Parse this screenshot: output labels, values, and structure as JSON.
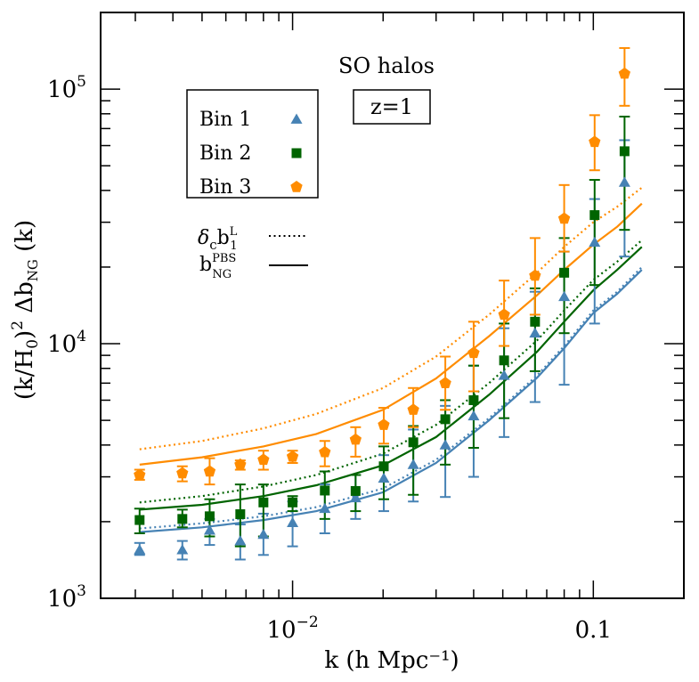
{
  "chart_data": {
    "type": "scatter",
    "xlabel": "k (h Mpc⁻¹)",
    "ylabel": "(k/H₀)² Δb_NG (k)",
    "xscale": "log",
    "yscale": "log",
    "xlim": [
      0.0023,
      0.2
    ],
    "ylim": [
      1000,
      200000
    ],
    "xticks": [
      {
        "value": 0.01,
        "label": "10",
        "exp": "−2"
      },
      {
        "value": 0.1,
        "label": "0.1",
        "exp": ""
      }
    ],
    "yticks": [
      {
        "value": 1000,
        "label": "10",
        "exp": "3"
      },
      {
        "value": 10000,
        "label": "10",
        "exp": "4"
      },
      {
        "value": 100000,
        "label": "10",
        "exp": "5"
      }
    ],
    "annotations": {
      "title": "SO halos",
      "redshift": "z=1"
    },
    "legend": {
      "placement": "top-left",
      "entries": [
        {
          "label": "Bin 1",
          "marker": "triangle",
          "color": "#4682b4"
        },
        {
          "label": "Bin 2",
          "marker": "square",
          "color": "#006400"
        },
        {
          "label": "Bin 3",
          "marker": "pentagon",
          "color": "#ff8c00"
        }
      ],
      "line_entries": [
        {
          "label": "δ",
          "sub": "c",
          "label2": "b",
          "sup2": "L",
          "sub2": "1",
          "style": "dotted"
        },
        {
          "label": "b",
          "sup": "PBS",
          "sub": "NG",
          "style": "solid"
        }
      ]
    },
    "x": [
      0.0031,
      0.0043,
      0.0053,
      0.0067,
      0.008,
      0.01,
      0.0128,
      0.0162,
      0.0201,
      0.0252,
      0.0322,
      0.04,
      0.0505,
      0.064,
      0.08,
      0.101,
      0.127
    ],
    "series": [
      {
        "name": "Bin 1",
        "marker": "triangle",
        "color": "#4682b4",
        "y": [
          1550,
          1550,
          1850,
          1680,
          1780,
          1980,
          2250,
          2480,
          2960,
          3350,
          4000,
          5200,
          7500,
          11000,
          15300,
          25000,
          43000
        ],
        "ylow": [
          1480,
          1420,
          1620,
          1420,
          1480,
          1600,
          1800,
          2050,
          2200,
          2400,
          2500,
          3000,
          4300,
          5900,
          6900,
          12000,
          22000
        ],
        "yhigh": [
          1650,
          1680,
          2050,
          1950,
          2150,
          2400,
          2800,
          3050,
          3650,
          4600,
          5700,
          8200,
          11500,
          16000,
          23000,
          37000,
          63000
        ]
      },
      {
        "name": "Bin 2",
        "marker": "square",
        "color": "#006400",
        "y": [
          2030,
          2050,
          2100,
          2140,
          2380,
          2380,
          2650,
          2640,
          3300,
          4100,
          5050,
          6000,
          8600,
          12200,
          19000,
          32000,
          57000
        ],
        "ylow": [
          1800,
          1900,
          1750,
          1600,
          1750,
          2200,
          2050,
          2200,
          2450,
          2550,
          3350,
          3900,
          5100,
          7800,
          11000,
          17000,
          28000
        ],
        "yhigh": [
          2250,
          2230,
          2450,
          2800,
          2800,
          2520,
          3150,
          3050,
          3950,
          4750,
          6000,
          8200,
          12000,
          16500,
          26000,
          44000,
          78000
        ]
      },
      {
        "name": "Bin 3",
        "marker": "pentagon",
        "color": "#ff8c00",
        "y": [
          3050,
          3100,
          3150,
          3350,
          3500,
          3600,
          3750,
          4200,
          4800,
          5500,
          7000,
          9200,
          13000,
          18500,
          31000,
          62000,
          115000
        ],
        "ylow": [
          2920,
          2880,
          2800,
          3200,
          3200,
          3400,
          3300,
          3600,
          4050,
          4700,
          5500,
          6500,
          9800,
          13000,
          23000,
          48000,
          86000
        ],
        "yhigh": [
          3200,
          3300,
          3550,
          3480,
          3800,
          3800,
          4150,
          4700,
          5600,
          6700,
          8900,
          12200,
          17700,
          26000,
          42000,
          79000,
          145000
        ]
      }
    ],
    "curves": [
      {
        "series": "Bin 1",
        "style": "dotted",
        "color": "#4682b4",
        "x": [
          0.0031,
          0.005,
          0.008,
          0.012,
          0.02,
          0.03,
          0.045,
          0.065,
          0.08,
          0.1,
          0.12,
          0.145
        ],
        "y": [
          1880,
          1970,
          2100,
          2280,
          2700,
          3500,
          5100,
          7500,
          9800,
          13500,
          16000,
          20000
        ]
      },
      {
        "series": "Bin 1",
        "style": "solid",
        "color": "#4682b4",
        "x": [
          0.0031,
          0.005,
          0.008,
          0.012,
          0.02,
          0.03,
          0.045,
          0.065,
          0.08,
          0.1,
          0.12,
          0.145
        ],
        "y": [
          1820,
          1900,
          2030,
          2200,
          2610,
          3400,
          5000,
          7350,
          9600,
          13200,
          15700,
          19500
        ]
      },
      {
        "series": "Bin 2",
        "style": "dotted",
        "color": "#006400",
        "x": [
          0.0031,
          0.005,
          0.008,
          0.012,
          0.02,
          0.03,
          0.045,
          0.065,
          0.08,
          0.1,
          0.12,
          0.145
        ],
        "y": [
          2380,
          2520,
          2750,
          3050,
          3700,
          4800,
          7000,
          10300,
          13500,
          17800,
          21000,
          25500
        ]
      },
      {
        "series": "Bin 2",
        "style": "solid",
        "color": "#006400",
        "x": [
          0.0031,
          0.005,
          0.008,
          0.012,
          0.02,
          0.03,
          0.045,
          0.065,
          0.08,
          0.1,
          0.12,
          0.145
        ],
        "y": [
          2230,
          2330,
          2520,
          2780,
          3330,
          4300,
          6300,
          9300,
          12200,
          16200,
          19500,
          24000
        ]
      },
      {
        "series": "Bin 3",
        "style": "dotted",
        "color": "#ff8c00",
        "x": [
          0.0031,
          0.005,
          0.008,
          0.012,
          0.02,
          0.03,
          0.045,
          0.065,
          0.08,
          0.1,
          0.12,
          0.145
        ],
        "y": [
          3850,
          4150,
          4650,
          5300,
          6700,
          8900,
          13000,
          19000,
          24000,
          30000,
          34500,
          41000
        ]
      },
      {
        "series": "Bin 3",
        "style": "solid",
        "color": "#ff8c00",
        "x": [
          0.0031,
          0.005,
          0.008,
          0.012,
          0.02,
          0.03,
          0.045,
          0.065,
          0.08,
          0.1,
          0.12,
          0.145
        ],
        "y": [
          3350,
          3580,
          3950,
          4420,
          5500,
          7300,
          10700,
          15500,
          19500,
          24500,
          28800,
          35500
        ]
      }
    ]
  }
}
